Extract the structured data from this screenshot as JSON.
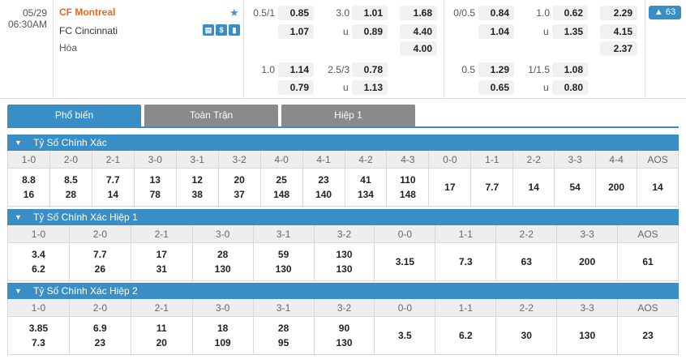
{
  "match": {
    "date": "05/29",
    "time": "06:30AM",
    "home": "CF Montreal",
    "away": "FC Cincinnati",
    "draw_label": "Hòa",
    "icons": [
      "stats-icon",
      "dollar-icon",
      "chart-icon"
    ],
    "more_count": "63",
    "fulltime": {
      "r1": {
        "hc": "0.5/1",
        "hv": "0.85",
        "ou": "3.0",
        "ov": "1.01",
        "x12": "1.68"
      },
      "r2": {
        "hv": "1.07",
        "u": "u",
        "ov": "0.89",
        "x12": "4.40"
      },
      "r3": {
        "x12": "4.00"
      },
      "r4": {
        "hc": "1.0",
        "hv": "1.14",
        "ou": "2.5/3",
        "ov": "0.78"
      },
      "r5": {
        "hv": "0.79",
        "u": "u",
        "ov": "1.13"
      }
    },
    "half1": {
      "r1": {
        "hc": "0/0.5",
        "hv": "0.84",
        "ou": "1.0",
        "ov": "0.62",
        "x12": "2.29"
      },
      "r2": {
        "hv": "1.04",
        "u": "u",
        "ov": "1.35",
        "x12": "4.15"
      },
      "r3": {
        "x12": "2.37"
      },
      "r4": {
        "hc": "0.5",
        "hv": "1.29",
        "ou": "1/1.5",
        "ov": "1.08"
      },
      "r5": {
        "hv": "0.65",
        "u": "u",
        "ov": "0.80"
      }
    }
  },
  "tabs": [
    {
      "label": "Phổ biến",
      "active": true
    },
    {
      "label": "Toàn Trận",
      "active": false
    },
    {
      "label": "Hiệp 1",
      "active": false
    }
  ],
  "sections": [
    {
      "title": "Tỷ Số Chính Xác",
      "columns": [
        {
          "h": "1-0",
          "v": [
            "8.8",
            "16"
          ]
        },
        {
          "h": "2-0",
          "v": [
            "8.5",
            "28"
          ]
        },
        {
          "h": "2-1",
          "v": [
            "7.7",
            "14"
          ]
        },
        {
          "h": "3-0",
          "v": [
            "13",
            "78"
          ]
        },
        {
          "h": "3-1",
          "v": [
            "12",
            "38"
          ]
        },
        {
          "h": "3-2",
          "v": [
            "20",
            "37"
          ]
        },
        {
          "h": "4-0",
          "v": [
            "25",
            "148"
          ]
        },
        {
          "h": "4-1",
          "v": [
            "23",
            "140"
          ]
        },
        {
          "h": "4-2",
          "v": [
            "41",
            "134"
          ]
        },
        {
          "h": "4-3",
          "v": [
            "110",
            "148"
          ]
        },
        {
          "h": "0-0",
          "v": [
            "17"
          ]
        },
        {
          "h": "1-1",
          "v": [
            "7.7"
          ]
        },
        {
          "h": "2-2",
          "v": [
            "14"
          ]
        },
        {
          "h": "3-3",
          "v": [
            "54"
          ]
        },
        {
          "h": "4-4",
          "v": [
            "200"
          ]
        },
        {
          "h": "AOS",
          "v": [
            "14"
          ]
        }
      ]
    },
    {
      "title": "Tỷ Số Chính Xác Hiệp 1",
      "columns": [
        {
          "h": "1-0",
          "v": [
            "3.4",
            "6.2"
          ]
        },
        {
          "h": "2-0",
          "v": [
            "7.7",
            "26"
          ]
        },
        {
          "h": "2-1",
          "v": [
            "17",
            "31"
          ]
        },
        {
          "h": "3-0",
          "v": [
            "28",
            "130"
          ]
        },
        {
          "h": "3-1",
          "v": [
            "59",
            "130"
          ]
        },
        {
          "h": "3-2",
          "v": [
            "130",
            "130"
          ]
        },
        {
          "h": "0-0",
          "v": [
            "3.15"
          ]
        },
        {
          "h": "1-1",
          "v": [
            "7.3"
          ]
        },
        {
          "h": "2-2",
          "v": [
            "63"
          ]
        },
        {
          "h": "3-3",
          "v": [
            "200"
          ]
        },
        {
          "h": "AOS",
          "v": [
            "61"
          ]
        }
      ]
    },
    {
      "title": "Tỷ Số Chính Xác Hiệp 2",
      "columns": [
        {
          "h": "1-0",
          "v": [
            "3.85",
            "7.3"
          ]
        },
        {
          "h": "2-0",
          "v": [
            "6.9",
            "23"
          ]
        },
        {
          "h": "2-1",
          "v": [
            "11",
            "20"
          ]
        },
        {
          "h": "3-0",
          "v": [
            "18",
            "109"
          ]
        },
        {
          "h": "3-1",
          "v": [
            "28",
            "95"
          ]
        },
        {
          "h": "3-2",
          "v": [
            "90",
            "130"
          ]
        },
        {
          "h": "0-0",
          "v": [
            "3.5"
          ]
        },
        {
          "h": "1-1",
          "v": [
            "6.2"
          ]
        },
        {
          "h": "2-2",
          "v": [
            "30"
          ]
        },
        {
          "h": "3-3",
          "v": [
            "130"
          ]
        },
        {
          "h": "AOS",
          "v": [
            "23"
          ]
        }
      ]
    }
  ]
}
